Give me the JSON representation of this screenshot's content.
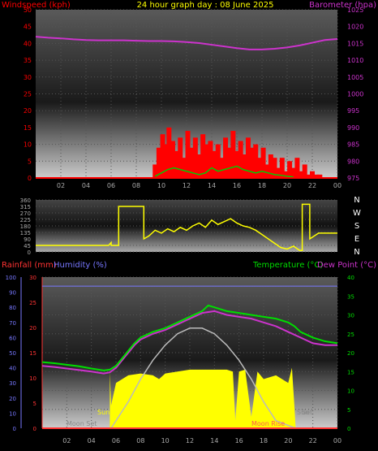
{
  "header": {
    "left_title": "Windspeed (kph)",
    "center_title": "24 hour graph day : 08 June 2025",
    "right_title": "Barometer (hpa)"
  },
  "colors": {
    "wind": "#ff0000",
    "gust": "#ff0000",
    "wind_avg": "#00cc00",
    "pressure": "#cc33cc",
    "direction": "#ffff00",
    "temperature": "#00dd00",
    "dewpoint": "#cc33cc",
    "humidity": "#7777ff",
    "rain": "#ff3333",
    "solar": "#ffff00",
    "sun_curve": "#bbbbbb",
    "grid": "#555555",
    "text_dim": "#aaaaaa"
  },
  "chart_data": [
    {
      "type": "line",
      "title": "24 hour graph day : 08 June 2025",
      "x_ticks": [
        "02",
        "04",
        "06",
        "08",
        "10",
        "12",
        "14",
        "16",
        "18",
        "20",
        "22",
        "00"
      ],
      "left_axis": {
        "label": "Windspeed (kph)",
        "ticks": [
          0,
          5,
          10,
          15,
          20,
          25,
          30,
          35,
          40,
          45,
          50
        ],
        "ylim": [
          0,
          50
        ]
      },
      "right_axis": {
        "label": "Barometer (hpa)",
        "ticks": [
          975,
          980,
          985,
          990,
          995,
          1000,
          1005,
          1010,
          1015,
          1020,
          1025
        ],
        "ylim": [
          975,
          1025
        ]
      },
      "series": [
        {
          "name": "Barometer (hpa)",
          "axis": "right",
          "x": [
            0,
            1,
            2,
            3,
            4,
            5,
            6,
            7,
            8,
            9,
            10,
            11,
            12,
            13,
            14,
            15,
            16,
            17,
            18,
            19,
            20,
            21,
            22,
            23,
            24
          ],
          "y": [
            1017,
            1016.7,
            1016.5,
            1016.2,
            1016,
            1015.9,
            1015.9,
            1015.9,
            1015.8,
            1015.7,
            1015.7,
            1015.6,
            1015.4,
            1015.1,
            1014.6,
            1014.1,
            1013.6,
            1013.2,
            1013.2,
            1013.4,
            1013.8,
            1014.4,
            1015.2,
            1016,
            1016.3
          ]
        },
        {
          "name": "Wind gust",
          "axis": "left",
          "x": [
            9.5,
            9.8,
            10.1,
            10.3,
            10.6,
            10.9,
            11.2,
            11.5,
            11.8,
            12.1,
            12.4,
            12.7,
            13.0,
            13.3,
            13.6,
            13.9,
            14.2,
            14.5,
            14.8,
            15.1,
            15.4,
            15.7,
            16.0,
            16.3,
            16.6,
            16.9,
            17.2,
            17.5,
            17.8,
            18.1,
            18.4,
            18.7,
            19.0,
            19.3,
            19.6,
            19.9,
            20.2,
            20.5,
            20.8,
            21.1,
            21.4,
            21.7,
            22.0,
            22.3,
            22.6
          ],
          "y": [
            4,
            9,
            13,
            10,
            15,
            11,
            8,
            12,
            6,
            14,
            9,
            12,
            7,
            13,
            10,
            11,
            8,
            10,
            6,
            12,
            9,
            14,
            8,
            11,
            7,
            12,
            9,
            10,
            6,
            9,
            4,
            7,
            6,
            3,
            6,
            2,
            5,
            3,
            6,
            2,
            4,
            1,
            2,
            1,
            1
          ]
        },
        {
          "name": "Wind average",
          "axis": "left",
          "x": [
            9.5,
            10,
            10.5,
            11,
            11.5,
            12,
            12.5,
            13,
            13.5,
            14,
            14.5,
            15,
            15.5,
            16,
            16.5,
            17,
            17.5,
            18,
            18.5,
            19,
            19.5,
            20,
            20.5
          ],
          "y": [
            0.5,
            1.5,
            2.5,
            3,
            2.5,
            2,
            1.5,
            1,
            1.5,
            3,
            2,
            2.5,
            3,
            3.5,
            2.5,
            2,
            1.5,
            2,
            1.5,
            1,
            0.8,
            0.5,
            0.3
          ]
        }
      ]
    },
    {
      "type": "line",
      "right_labels": [
        "N",
        "W",
        "S",
        "E",
        "N"
      ],
      "y_ticks": [
        0,
        45,
        90,
        135,
        180,
        225,
        270,
        315,
        360
      ],
      "ylim": [
        0,
        360
      ],
      "series": [
        {
          "name": "Wind direction",
          "x": [
            0,
            1,
            2,
            3,
            4,
            5,
            5.8,
            6.0,
            6.0,
            6.6,
            6.6,
            8.6,
            8.6,
            9.0,
            9.5,
            10.0,
            10.5,
            11.0,
            11.5,
            12.0,
            12.5,
            13.0,
            13.5,
            14.0,
            14.5,
            15.0,
            15.5,
            16.0,
            16.5,
            17.0,
            17.5,
            18.0,
            18.5,
            19.0,
            19.5,
            20.0,
            20.5,
            21.0,
            21.2,
            21.2,
            21.8,
            21.8,
            22.5,
            23,
            24
          ],
          "y": [
            45,
            45,
            45,
            45,
            45,
            45,
            45,
            65,
            45,
            45,
            315,
            315,
            90,
            110,
            150,
            130,
            160,
            140,
            170,
            150,
            180,
            200,
            170,
            220,
            190,
            210,
            230,
            200,
            180,
            170,
            150,
            120,
            90,
            60,
            30,
            20,
            40,
            10,
            10,
            330,
            330,
            90,
            130,
            130,
            130
          ]
        }
      ]
    },
    {
      "type": "line",
      "x_ticks": [
        "02",
        "04",
        "06",
        "08",
        "10",
        "12",
        "14",
        "16",
        "18",
        "20",
        "22",
        "00"
      ],
      "left_axes": [
        {
          "label": "Rainfall (mm)",
          "ticks": [
            0,
            5,
            10,
            15,
            20,
            25,
            30
          ],
          "ylim": [
            0,
            30
          ]
        },
        {
          "label": "Humidity (%)",
          "ticks": [
            0,
            10,
            20,
            30,
            40,
            50,
            60,
            70,
            80,
            90,
            100
          ],
          "ylim": [
            0,
            100
          ]
        }
      ],
      "right_axis": {
        "label": "Temperature (°C)",
        "label2": "Dew Point (°C)",
        "ticks": [
          0,
          5,
          10,
          15,
          20,
          25,
          30,
          35,
          40
        ],
        "ylim": [
          0,
          40
        ]
      },
      "annotations": [
        "Sun",
        "Moon Set",
        "Sun",
        "Set",
        "Moon Rise"
      ],
      "series": [
        {
          "name": "Temperature (°C)",
          "x": [
            0,
            1,
            2,
            3,
            4,
            5,
            5.5,
            6,
            6.5,
            7,
            7.5,
            8,
            9,
            10,
            11,
            12,
            13,
            13.5,
            14,
            15,
            16,
            17,
            18,
            19,
            20,
            20.5,
            21,
            22,
            23,
            24
          ],
          "y": [
            17.5,
            17.2,
            16.8,
            16.4,
            15.8,
            15.3,
            15.5,
            16.5,
            18.5,
            20.5,
            22.5,
            24,
            25.5,
            26.5,
            28,
            29.5,
            31,
            32.5,
            32,
            31,
            30.5,
            30,
            29.5,
            29,
            28,
            27,
            25.5,
            24,
            23,
            22.5
          ]
        },
        {
          "name": "Dew Point (°C)",
          "x": [
            0,
            1,
            2,
            3,
            4,
            5,
            5.5,
            6,
            6.5,
            7,
            7.5,
            8,
            9,
            10,
            11,
            12,
            13,
            14,
            15,
            16,
            17,
            18,
            19,
            20,
            21,
            22,
            23,
            24
          ],
          "y": [
            16.5,
            16.2,
            15.8,
            15.4,
            15.0,
            14.5,
            14.8,
            16,
            18,
            20,
            22,
            23.5,
            25,
            26,
            27.5,
            29,
            30.5,
            31,
            30,
            29.5,
            29,
            28,
            27,
            25.5,
            24,
            22.5,
            22,
            22
          ]
        },
        {
          "name": "Solar",
          "x": [
            5.5,
            5.6,
            6,
            7,
            8,
            9,
            9.5,
            10,
            11,
            12,
            13,
            14,
            15,
            15.5,
            15.7,
            16,
            16.5,
            17,
            17.5,
            18,
            19,
            20,
            20.3,
            20.5,
            20.6
          ],
          "y": [
            15,
            6,
            12,
            14,
            14.5,
            14,
            13,
            14.5,
            15,
            15.5,
            15.5,
            15.5,
            15.5,
            15,
            2,
            15,
            15.5,
            3,
            15,
            13,
            14,
            12,
            16,
            6,
            0
          ]
        },
        {
          "name": "Sun curve",
          "x": [
            5.6,
            7,
            8,
            9,
            10,
            11,
            12,
            13,
            14,
            15,
            16,
            17,
            18,
            19,
            20.6
          ],
          "y": [
            0,
            7,
            13,
            18,
            22,
            25,
            26.5,
            26.5,
            25,
            22,
            18,
            13,
            7,
            2,
            0
          ]
        }
      ]
    }
  ]
}
